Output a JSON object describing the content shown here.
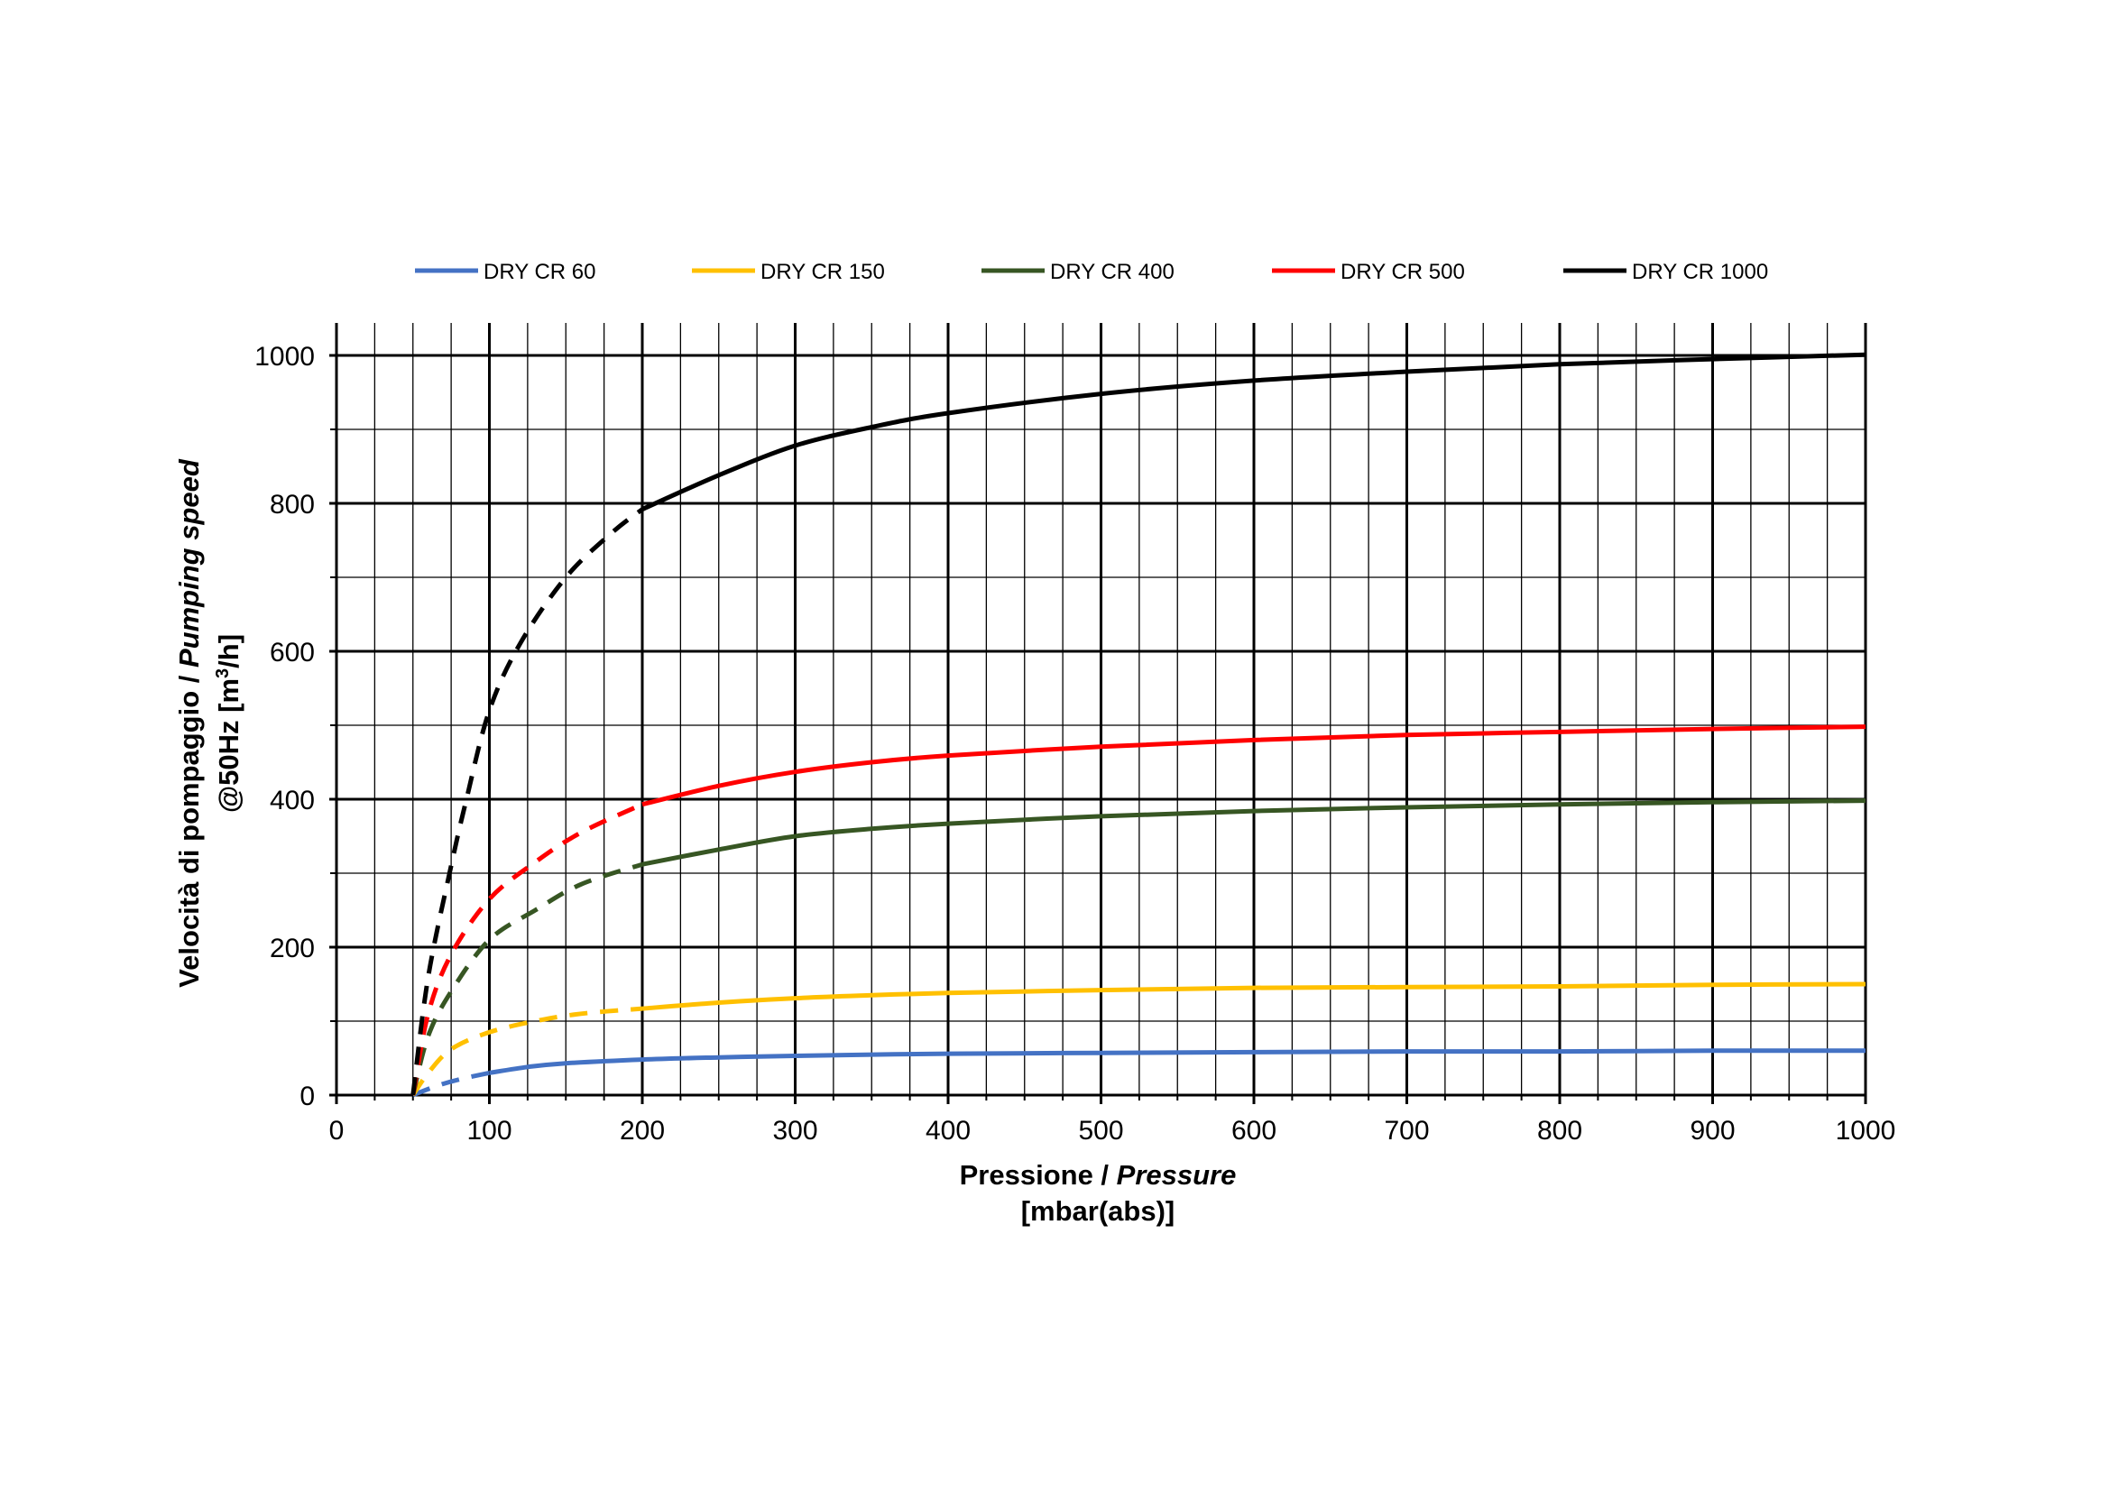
{
  "chart_data": {
    "type": "line",
    "xlabel": {
      "line1_normal": "Pressione / ",
      "line1_italic": "Pressure",
      "line2": "[mbar(abs)]"
    },
    "ylabel": {
      "line1_normal": "Velocità di pompaggio / ",
      "line1_italic": "Pumping speed",
      "line2_prefix": "@50Hz [m",
      "line2_sup": "3",
      "line2_suffix": "/h]"
    },
    "xlim": [
      0,
      1000
    ],
    "ylim": [
      0,
      1000
    ],
    "x_major_ticks": [
      0,
      100,
      200,
      300,
      400,
      500,
      600,
      700,
      800,
      900,
      1000
    ],
    "x_tick_labels": [
      "0",
      "100",
      "200",
      "300",
      "400",
      "500",
      "600",
      "700",
      "800",
      "900",
      "1000"
    ],
    "x_minor_step": 25,
    "y_major_ticks": [
      0,
      200,
      400,
      600,
      800,
      1000
    ],
    "y_tick_labels": [
      "0",
      "200",
      "400",
      "600",
      "800",
      "1000"
    ],
    "y_minor_step": 100,
    "grid": true,
    "legend_position": "top",
    "series": [
      {
        "name": "DRY CR 60",
        "color": "#4472C4",
        "dashed_segment": [
          [
            50,
            0
          ],
          [
            65,
            12
          ],
          [
            80,
            21
          ],
          [
            100,
            30
          ]
        ],
        "solid_segment": [
          [
            100,
            30
          ],
          [
            125,
            38
          ],
          [
            150,
            43
          ],
          [
            200,
            48
          ],
          [
            250,
            51
          ],
          [
            300,
            53
          ],
          [
            400,
            56
          ],
          [
            500,
            57
          ],
          [
            600,
            58
          ],
          [
            700,
            59
          ],
          [
            800,
            59
          ],
          [
            900,
            60
          ],
          [
            1000,
            60
          ]
        ]
      },
      {
        "name": "DRY CR 150",
        "color": "#FFC000",
        "dashed_segment": [
          [
            50,
            0
          ],
          [
            60,
            30
          ],
          [
            75,
            62
          ],
          [
            100,
            85
          ],
          [
            130,
            100
          ],
          [
            160,
            110
          ],
          [
            200,
            117
          ]
        ],
        "solid_segment": [
          [
            200,
            117
          ],
          [
            250,
            125
          ],
          [
            300,
            131
          ],
          [
            350,
            135
          ],
          [
            400,
            138
          ],
          [
            500,
            142
          ],
          [
            600,
            145
          ],
          [
            700,
            146
          ],
          [
            800,
            147
          ],
          [
            900,
            149
          ],
          [
            1000,
            150
          ]
        ]
      },
      {
        "name": "DRY CR 400",
        "color": "#375623",
        "dashed_segment": [
          [
            50,
            0
          ],
          [
            60,
            80
          ],
          [
            75,
            140
          ],
          [
            100,
            210
          ],
          [
            130,
            250
          ],
          [
            160,
            285
          ],
          [
            200,
            312
          ]
        ],
        "solid_segment": [
          [
            200,
            312
          ],
          [
            250,
            332
          ],
          [
            300,
            350
          ],
          [
            350,
            360
          ],
          [
            400,
            367
          ],
          [
            500,
            377
          ],
          [
            600,
            384
          ],
          [
            700,
            389
          ],
          [
            800,
            393
          ],
          [
            900,
            396
          ],
          [
            1000,
            398
          ]
        ]
      },
      {
        "name": "DRY CR 500",
        "color": "#FF0000",
        "dashed_segment": [
          [
            50,
            0
          ],
          [
            60,
            110
          ],
          [
            75,
            190
          ],
          [
            100,
            265
          ],
          [
            130,
            315
          ],
          [
            160,
            355
          ],
          [
            200,
            393
          ]
        ],
        "solid_segment": [
          [
            200,
            393
          ],
          [
            250,
            418
          ],
          [
            300,
            437
          ],
          [
            350,
            450
          ],
          [
            400,
            459
          ],
          [
            500,
            471
          ],
          [
            600,
            480
          ],
          [
            700,
            487
          ],
          [
            800,
            491
          ],
          [
            900,
            495
          ],
          [
            1000,
            498
          ]
        ]
      },
      {
        "name": "DRY CR 1000",
        "color": "#000000",
        "dashed_segment": [
          [
            50,
            0
          ],
          [
            60,
            160
          ],
          [
            75,
            310
          ],
          [
            85,
            400
          ],
          [
            100,
            520
          ],
          [
            120,
            610
          ],
          [
            150,
            700
          ],
          [
            180,
            760
          ],
          [
            200,
            792
          ]
        ],
        "solid_segment": [
          [
            200,
            792
          ],
          [
            250,
            838
          ],
          [
            300,
            878
          ],
          [
            350,
            903
          ],
          [
            400,
            922
          ],
          [
            500,
            948
          ],
          [
            600,
            966
          ],
          [
            700,
            978
          ],
          [
            800,
            988
          ],
          [
            900,
            995
          ],
          [
            1000,
            1001
          ]
        ]
      }
    ]
  }
}
